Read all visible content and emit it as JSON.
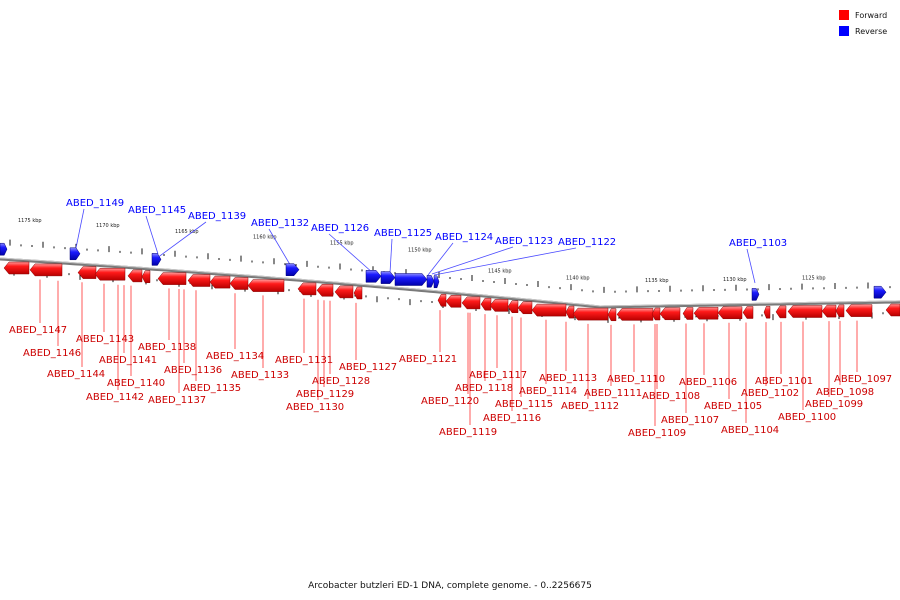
{
  "caption": "Arcobacter butzleri ED-1 DNA, complete genome. - 0..2256675",
  "legend": {
    "forward": {
      "label": "Forward",
      "color": "#ff0000"
    },
    "reverse": {
      "label": "Reverse",
      "color": "#0000ff"
    }
  },
  "kbp_labels": [
    "1175 kbp",
    "1170 kbp",
    "1165 kbp",
    "1160 kbp",
    "1155 kbp",
    "1150 kbp",
    "1145 kbp",
    "1140 kbp",
    "1135 kbp",
    "1130 kbp",
    "1125 kbp"
  ],
  "reverse_genes": [
    "ABED_1149",
    "ABED_1145",
    "ABED_1139",
    "ABED_1132",
    "ABED_1126",
    "ABED_1125",
    "ABED_1124",
    "ABED_1123",
    "ABED_1122",
    "ABED_1103"
  ],
  "forward_genes": [
    "ABED_1147",
    "ABED_1146",
    "ABED_1144",
    "ABED_1143",
    "ABED_1142",
    "ABED_1141",
    "ABED_1140",
    "ABED_1138",
    "ABED_1137",
    "ABED_1136",
    "ABED_1135",
    "ABED_1134",
    "ABED_1133",
    "ABED_1131",
    "ABED_1130",
    "ABED_1129",
    "ABED_1128",
    "ABED_1127",
    "ABED_1121",
    "ABED_1120",
    "ABED_1119",
    "ABED_1118",
    "ABED_1117",
    "ABED_1116",
    "ABED_1115",
    "ABED_1114",
    "ABED_1113",
    "ABED_1112",
    "ABED_1111",
    "ABED_1110",
    "ABED_1109",
    "ABED_1108",
    "ABED_1107",
    "ABED_1106",
    "ABED_1105",
    "ABED_1104",
    "ABED_1102",
    "ABED_1101",
    "ABED_1100",
    "ABED_1099",
    "ABED_1098",
    "ABED_1097"
  ]
}
